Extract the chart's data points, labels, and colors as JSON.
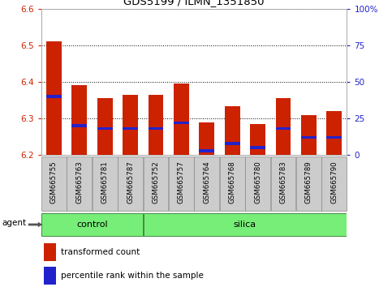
{
  "title": "GDS5199 / ILMN_1351850",
  "samples": [
    "GSM665755",
    "GSM665763",
    "GSM665781",
    "GSM665787",
    "GSM665752",
    "GSM665757",
    "GSM665764",
    "GSM665768",
    "GSM665780",
    "GSM665783",
    "GSM665789",
    "GSM665790"
  ],
  "n_control": 4,
  "n_silica": 8,
  "transformed_count": [
    6.51,
    6.39,
    6.355,
    6.365,
    6.365,
    6.395,
    6.29,
    6.333,
    6.285,
    6.355,
    6.31,
    6.32
  ],
  "percentile_rank": [
    40,
    20,
    18,
    18,
    18,
    22,
    3,
    8,
    5,
    18,
    12,
    12
  ],
  "ylim": [
    6.2,
    6.6
  ],
  "yticks_left": [
    6.2,
    6.3,
    6.4,
    6.5,
    6.6
  ],
  "y2lim": [
    0,
    100
  ],
  "y2ticks": [
    0,
    25,
    50,
    75,
    100
  ],
  "bar_color": "#cc2200",
  "marker_color": "#2222cc",
  "bar_width": 0.6,
  "legend_red": "transformed count",
  "legend_blue": "percentile rank within the sample",
  "agent_label": "agent",
  "group_fill": "#77ee77",
  "group_edge": "#448844",
  "tick_bg": "#cccccc",
  "tick_edge": "#888888"
}
